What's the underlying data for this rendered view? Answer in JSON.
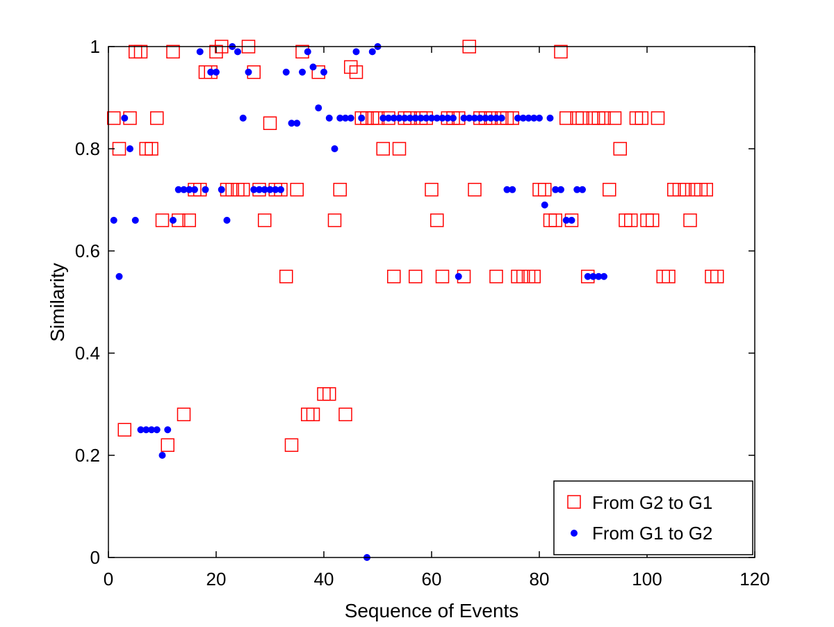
{
  "chart_data": {
    "type": "scatter",
    "xlabel": "Sequence of Events",
    "ylabel": "Similarity",
    "xlim": [
      0,
      120
    ],
    "ylim": [
      0,
      1
    ],
    "xticks": [
      0,
      20,
      40,
      60,
      80,
      100,
      120
    ],
    "yticks": [
      0,
      0.2,
      0.4,
      0.6,
      0.8,
      1
    ],
    "xtick_labels": [
      "0",
      "20",
      "40",
      "60",
      "80",
      "100",
      "120"
    ],
    "ytick_labels": [
      "0",
      "0.2",
      "0.4",
      "0.6",
      "0.8",
      "1"
    ],
    "grid": false,
    "legend_position": "bottom-right",
    "series": [
      {
        "name": "From G2 to G1",
        "marker": "square",
        "color": "#ff0000",
        "x": [
          1,
          2,
          3,
          4,
          5,
          6,
          7,
          8,
          9,
          10,
          11,
          12,
          13,
          14,
          15,
          16,
          17,
          18,
          19,
          20,
          21,
          22,
          23,
          24,
          25,
          26,
          27,
          28,
          29,
          30,
          31,
          32,
          33,
          34,
          35,
          36,
          37,
          38,
          39,
          40,
          41,
          42,
          43,
          44,
          45,
          46,
          47,
          48,
          49,
          50,
          51,
          52,
          53,
          54,
          55,
          56,
          57,
          58,
          59,
          60,
          61,
          62,
          63,
          64,
          65,
          66,
          67,
          68,
          69,
          70,
          71,
          72,
          73,
          74,
          75,
          76,
          77,
          78,
          79,
          80,
          81,
          82,
          83,
          84,
          85,
          86,
          87,
          88,
          89,
          90,
          91,
          92,
          93,
          94,
          95,
          96,
          97,
          98,
          99,
          100,
          101,
          102,
          103,
          104,
          105,
          106,
          107,
          108,
          109,
          110,
          111,
          112,
          113
        ],
        "y": [
          0.86,
          0.8,
          0.25,
          0.86,
          0.99,
          0.99,
          0.8,
          0.8,
          0.86,
          0.66,
          0.22,
          0.99,
          0.66,
          0.28,
          0.66,
          0.72,
          0.72,
          0.95,
          0.95,
          0.99,
          1.0,
          0.72,
          0.72,
          0.72,
          0.72,
          1.0,
          0.95,
          0.72,
          0.66,
          0.85,
          0.72,
          0.72,
          0.55,
          0.22,
          0.72,
          0.99,
          0.28,
          0.28,
          0.95,
          0.32,
          0.32,
          0.66,
          0.72,
          0.28,
          0.96,
          0.95,
          0.86,
          0.86,
          0.86,
          0.86,
          0.8,
          0.86,
          0.55,
          0.8,
          0.86,
          0.86,
          0.55,
          0.86,
          0.86,
          0.72,
          0.66,
          0.55,
          0.86,
          0.86,
          0.86,
          0.55,
          1.0,
          0.72,
          0.86,
          0.86,
          0.86,
          0.55,
          0.86,
          0.86,
          0.86,
          0.55,
          0.55,
          0.55,
          0.55,
          0.72,
          0.72,
          0.66,
          0.66,
          0.99,
          0.86,
          0.66,
          0.86,
          0.86,
          0.55,
          0.86,
          0.86,
          0.86,
          0.72,
          0.86,
          0.8,
          0.66,
          0.66,
          0.86,
          0.86,
          0.66,
          0.66,
          0.86,
          0.55,
          0.55,
          0.72,
          0.72,
          0.72,
          0.66,
          0.72,
          0.72,
          0.72,
          0.55,
          0.55
        ]
      },
      {
        "name": "From G1 to G2",
        "marker": "dot",
        "color": "#0000ff",
        "x": [
          1,
          2,
          3,
          4,
          5,
          6,
          7,
          8,
          9,
          10,
          11,
          12,
          13,
          14,
          15,
          16,
          17,
          18,
          19,
          20,
          21,
          22,
          23,
          24,
          25,
          26,
          27,
          28,
          29,
          30,
          31,
          32,
          33,
          34,
          35,
          36,
          37,
          38,
          39,
          40,
          41,
          42,
          43,
          44,
          45,
          46,
          47,
          48,
          49,
          50,
          51,
          52,
          53,
          54,
          55,
          56,
          57,
          58,
          59,
          60,
          61,
          62,
          63,
          64,
          65,
          66,
          67,
          68,
          69,
          70,
          71,
          72,
          73,
          74,
          75,
          76,
          77,
          78,
          79,
          80,
          81,
          82,
          83,
          84,
          85,
          86,
          87,
          88,
          89,
          90,
          91,
          92
        ],
        "y": [
          0.66,
          0.55,
          0.86,
          0.8,
          0.66,
          0.25,
          0.25,
          0.25,
          0.25,
          0.2,
          0.25,
          0.66,
          0.72,
          0.72,
          0.72,
          0.72,
          0.99,
          0.72,
          0.95,
          0.95,
          0.72,
          0.66,
          1.0,
          0.99,
          0.86,
          0.95,
          0.72,
          0.72,
          0.72,
          0.72,
          0.72,
          0.72,
          0.95,
          0.85,
          0.85,
          0.95,
          0.99,
          0.96,
          0.88,
          0.95,
          0.86,
          0.8,
          0.86,
          0.86,
          0.86,
          0.99,
          0.86,
          0.0,
          0.99,
          1.0,
          0.86,
          0.86,
          0.86,
          0.86,
          0.86,
          0.86,
          0.86,
          0.86,
          0.86,
          0.86,
          0.86,
          0.86,
          0.86,
          0.86,
          0.55,
          0.86,
          0.86,
          0.86,
          0.86,
          0.86,
          0.86,
          0.86,
          0.86,
          0.72,
          0.72,
          0.86,
          0.86,
          0.86,
          0.86,
          0.86,
          0.69,
          0.86,
          0.72,
          0.72,
          0.66,
          0.66,
          0.72,
          0.72,
          0.55,
          0.55,
          0.55,
          0.55
        ]
      }
    ]
  }
}
